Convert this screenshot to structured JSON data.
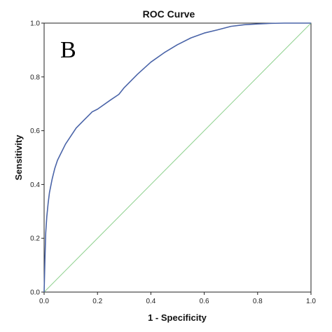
{
  "chart_data": {
    "type": "line",
    "title": "ROC Curve",
    "panel_label": "B",
    "xlabel": "1 - Specificity",
    "ylabel": "Sensitivity",
    "xlim": [
      0.0,
      1.0
    ],
    "ylim": [
      0.0,
      1.0
    ],
    "x_ticks": [
      "0.0",
      "0.2",
      "0.4",
      "0.6",
      "0.8",
      "1.0"
    ],
    "y_ticks": [
      "0.0",
      "0.2",
      "0.4",
      "0.6",
      "0.8",
      "1.0"
    ],
    "grid": false,
    "legend": "none",
    "series": [
      {
        "color": "#4a64a8",
        "x": [
          0.0,
          0.003,
          0.006,
          0.01,
          0.015,
          0.02,
          0.03,
          0.04,
          0.05,
          0.06,
          0.08,
          0.1,
          0.12,
          0.15,
          0.18,
          0.2,
          0.25,
          0.28,
          0.3,
          0.35,
          0.4,
          0.45,
          0.5,
          0.55,
          0.6,
          0.65,
          0.7,
          0.75,
          0.8,
          0.85,
          0.9,
          0.95,
          1.0
        ],
        "y": [
          0.0,
          0.12,
          0.22,
          0.28,
          0.33,
          0.37,
          0.42,
          0.46,
          0.49,
          0.51,
          0.55,
          0.58,
          0.61,
          0.64,
          0.67,
          0.68,
          0.715,
          0.735,
          0.76,
          0.81,
          0.855,
          0.89,
          0.92,
          0.945,
          0.963,
          0.975,
          0.988,
          0.994,
          0.997,
          0.999,
          1.0,
          1.0,
          1.0
        ]
      },
      {
        "color": "#8fd18f",
        "x": [
          0.0,
          1.0
        ],
        "y": [
          0.0,
          1.0
        ]
      }
    ]
  }
}
